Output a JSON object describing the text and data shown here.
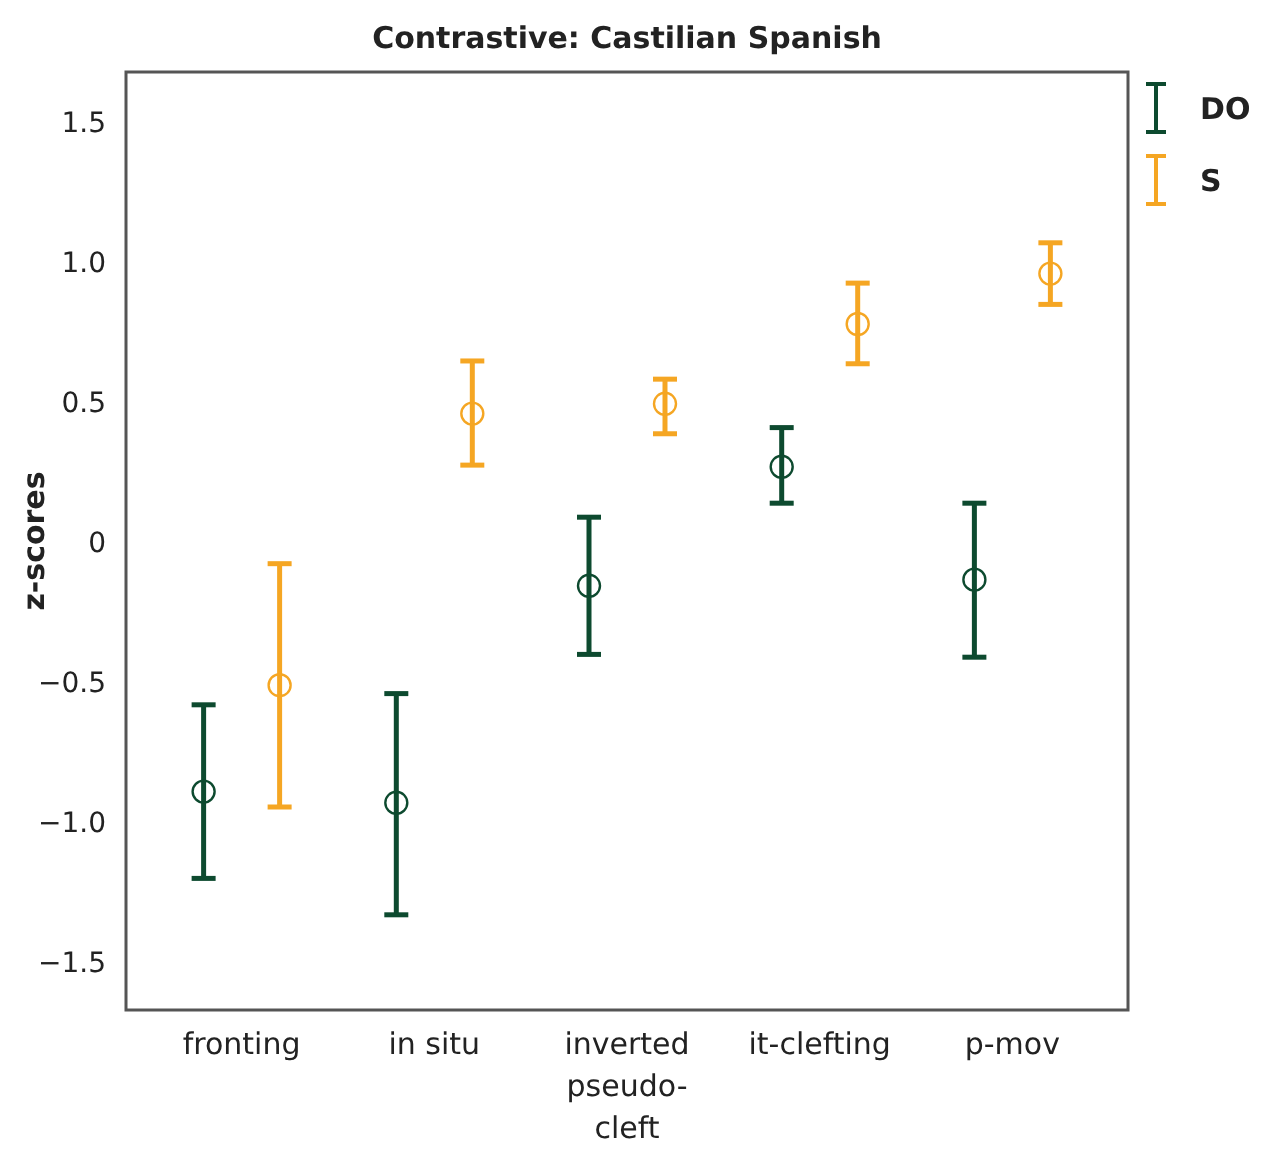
{
  "chart_data": {
    "type": "scatter",
    "title": "Contrastive: Castilian Spanish",
    "ylabel": "z-scores",
    "categories": [
      "fronting",
      "in situ",
      "inverted pseudo-cleft",
      "it-clefting",
      "p-mov"
    ],
    "series": [
      {
        "name": "DO",
        "color": "#0d4a2f",
        "values": [
          -0.89,
          -0.93,
          -0.155,
          0.27,
          -0.133
        ],
        "errors": [
          [
            -1.2,
            -0.58
          ],
          [
            -1.33,
            -0.54
          ],
          [
            -0.4,
            0.09
          ],
          [
            0.14,
            0.41
          ],
          [
            -0.41,
            0.14
          ]
        ]
      },
      {
        "name": "S",
        "color": "#f5a623",
        "values": [
          -0.51,
          0.46,
          0.495,
          0.78,
          0.96
        ],
        "errors": [
          [
            -0.945,
            -0.076
          ],
          [
            0.276,
            0.648
          ],
          [
            0.388,
            0.583
          ],
          [
            0.638,
            0.926
          ],
          [
            0.85,
            1.07
          ]
        ]
      }
    ],
    "ylim": [
      -1.67,
      1.68
    ],
    "yticks": [
      {
        "value": -1.5,
        "label": "−1.5"
      },
      {
        "value": -1,
        "label": "−1.0"
      },
      {
        "value": -0.5,
        "label": "−0.5"
      },
      0,
      0.5,
      {
        "value": 1,
        "label": "1.0"
      },
      1.5
    ],
    "marker": "circle",
    "legend": "top right",
    "grid": false
  }
}
